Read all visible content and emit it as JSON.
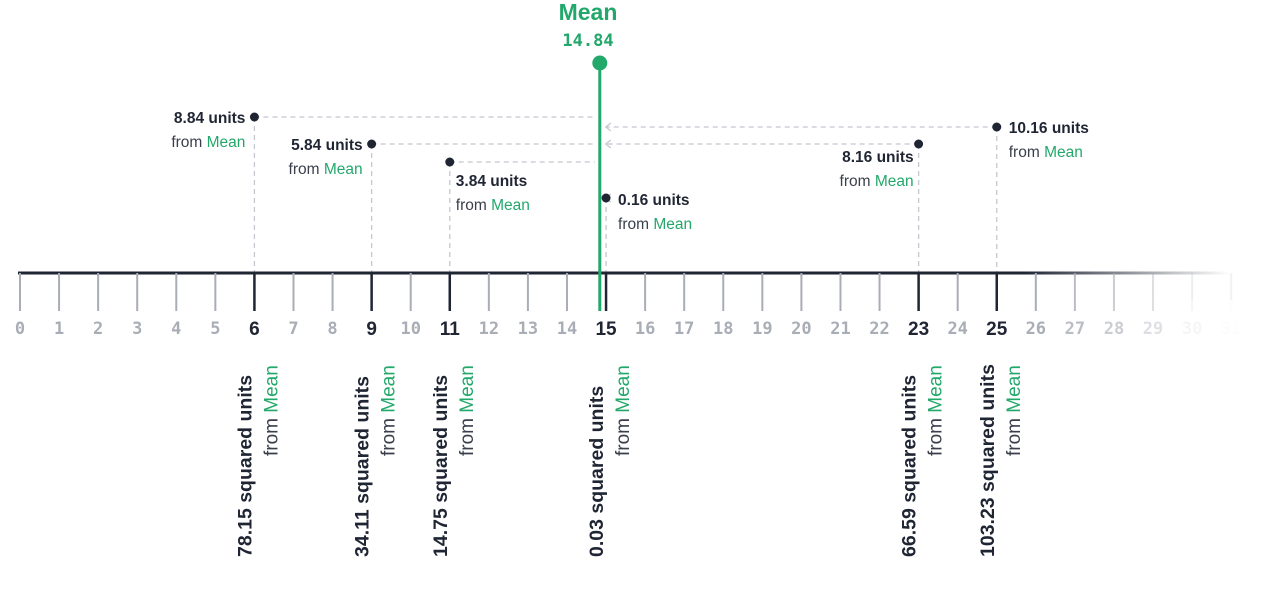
{
  "mean": {
    "label": "Mean",
    "value": 14.84,
    "value_text": "14.84"
  },
  "colors": {
    "accent": "#22a86a",
    "dark": "#1f2533",
    "tick_gray": "#a9adb6",
    "dash": "#c5c8d0",
    "label_gray": "#3a3f4b"
  },
  "axis": {
    "min": 0,
    "max": 31,
    "tick_labels": [
      "0",
      "1",
      "2",
      "3",
      "4",
      "5",
      "6",
      "7",
      "8",
      "9",
      "10",
      "11",
      "12",
      "13",
      "14",
      "15",
      "16",
      "17",
      "18",
      "19",
      "20",
      "21",
      "22",
      "23",
      "24",
      "25",
      "26",
      "27",
      "28",
      "29",
      "30",
      "31"
    ]
  },
  "from_word": "from",
  "points": [
    {
      "x": 6,
      "distance_text": "8.84 units",
      "squared_text": "78.15 squared units"
    },
    {
      "x": 9,
      "distance_text": "5.84 units",
      "squared_text": "34.11 squared units"
    },
    {
      "x": 11,
      "distance_text": "3.84 units",
      "squared_text": "14.75 squared units"
    },
    {
      "x": 15,
      "distance_text": "0.16 units",
      "squared_text": "0.03 squared units"
    },
    {
      "x": 23,
      "distance_text": "8.16 units",
      "squared_text": "66.59 squared units"
    },
    {
      "x": 25,
      "distance_text": "10.16 units",
      "squared_text": "103.23 squared units"
    }
  ]
}
